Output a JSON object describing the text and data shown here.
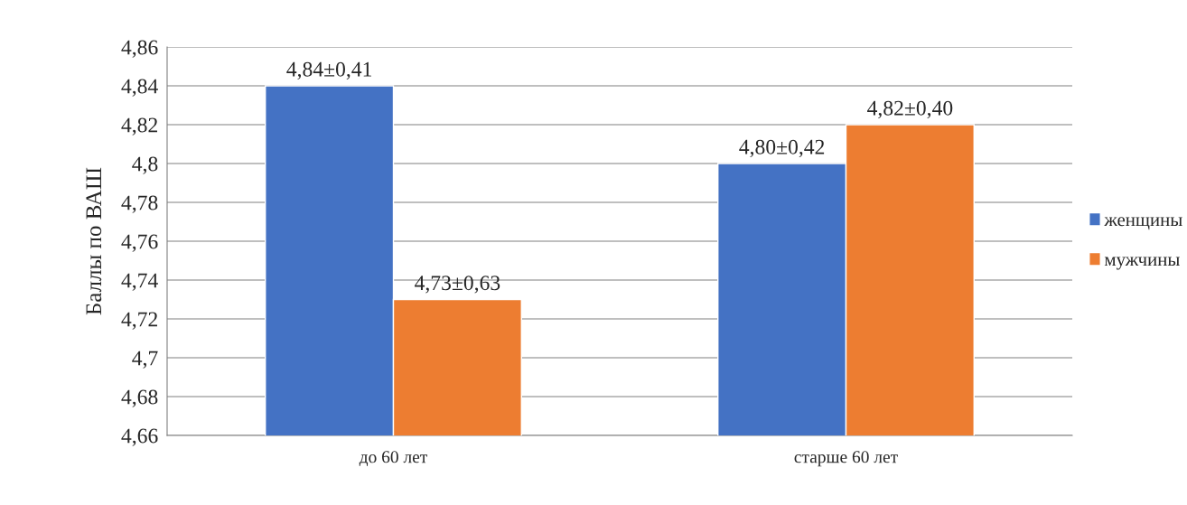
{
  "chart_data": {
    "type": "bar",
    "ylabel": "Баллы по ВАШ",
    "categories": [
      "до 60 лет",
      "старше 60 лет"
    ],
    "series": [
      {
        "name": "женщины",
        "color": "#4472c4",
        "values": [
          4.84,
          4.8
        ],
        "value_labels": [
          "4,84±0,41",
          "4,80±0,42"
        ]
      },
      {
        "name": "мужчины",
        "color": "#ed7d31",
        "values": [
          4.73,
          4.82
        ],
        "value_labels": [
          "4,73±0,63",
          "4,82±0,40"
        ]
      }
    ],
    "ylim": [
      4.66,
      4.86
    ],
    "yticks": [
      {
        "value": 4.66,
        "label": "4,66"
      },
      {
        "value": 4.68,
        "label": "4,68"
      },
      {
        "value": 4.7,
        "label": "4,7"
      },
      {
        "value": 4.72,
        "label": "4,72"
      },
      {
        "value": 4.74,
        "label": "4,74"
      },
      {
        "value": 4.76,
        "label": "4,76"
      },
      {
        "value": 4.78,
        "label": "4,78"
      },
      {
        "value": 4.8,
        "label": "4,8"
      },
      {
        "value": 4.82,
        "label": "4,82"
      },
      {
        "value": 4.84,
        "label": "4,84"
      },
      {
        "value": 4.86,
        "label": "4,86"
      }
    ],
    "grid": "y",
    "legend": "right"
  }
}
